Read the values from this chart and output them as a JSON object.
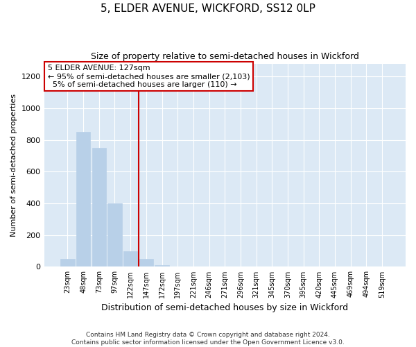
{
  "title": "5, ELDER AVENUE, WICKFORD, SS12 0LP",
  "subtitle": "Size of property relative to semi-detached houses in Wickford",
  "xlabel": "Distribution of semi-detached houses by size in Wickford",
  "ylabel": "Number of semi-detached properties",
  "categories": [
    "23sqm",
    "48sqm",
    "73sqm",
    "97sqm",
    "122sqm",
    "147sqm",
    "172sqm",
    "197sqm",
    "221sqm",
    "246sqm",
    "271sqm",
    "296sqm",
    "321sqm",
    "345sqm",
    "370sqm",
    "395sqm",
    "420sqm",
    "445sqm",
    "469sqm",
    "494sqm",
    "519sqm"
  ],
  "values": [
    50,
    850,
    750,
    400,
    100,
    50,
    10,
    2,
    0,
    0,
    0,
    0,
    0,
    0,
    0,
    0,
    0,
    0,
    0,
    0,
    0
  ],
  "bar_color": "#b8d0e8",
  "background_color": "#dce9f5",
  "ylim": [
    0,
    1280
  ],
  "yticks": [
    0,
    200,
    400,
    600,
    800,
    1000,
    1200
  ],
  "property_size_idx": 4,
  "property_label": "5 ELDER AVENUE: 127sqm",
  "pct_smaller": 95,
  "n_smaller": 2103,
  "pct_larger": 5,
  "n_larger": 110,
  "vline_color": "#cc0000",
  "annotation_box_color": "#cc0000",
  "footer_line1": "Contains HM Land Registry data © Crown copyright and database right 2024.",
  "footer_line2": "Contains public sector information licensed under the Open Government Licence v3.0.",
  "title_fontsize": 11,
  "subtitle_fontsize": 9,
  "xlabel_fontsize": 9,
  "ylabel_fontsize": 8
}
